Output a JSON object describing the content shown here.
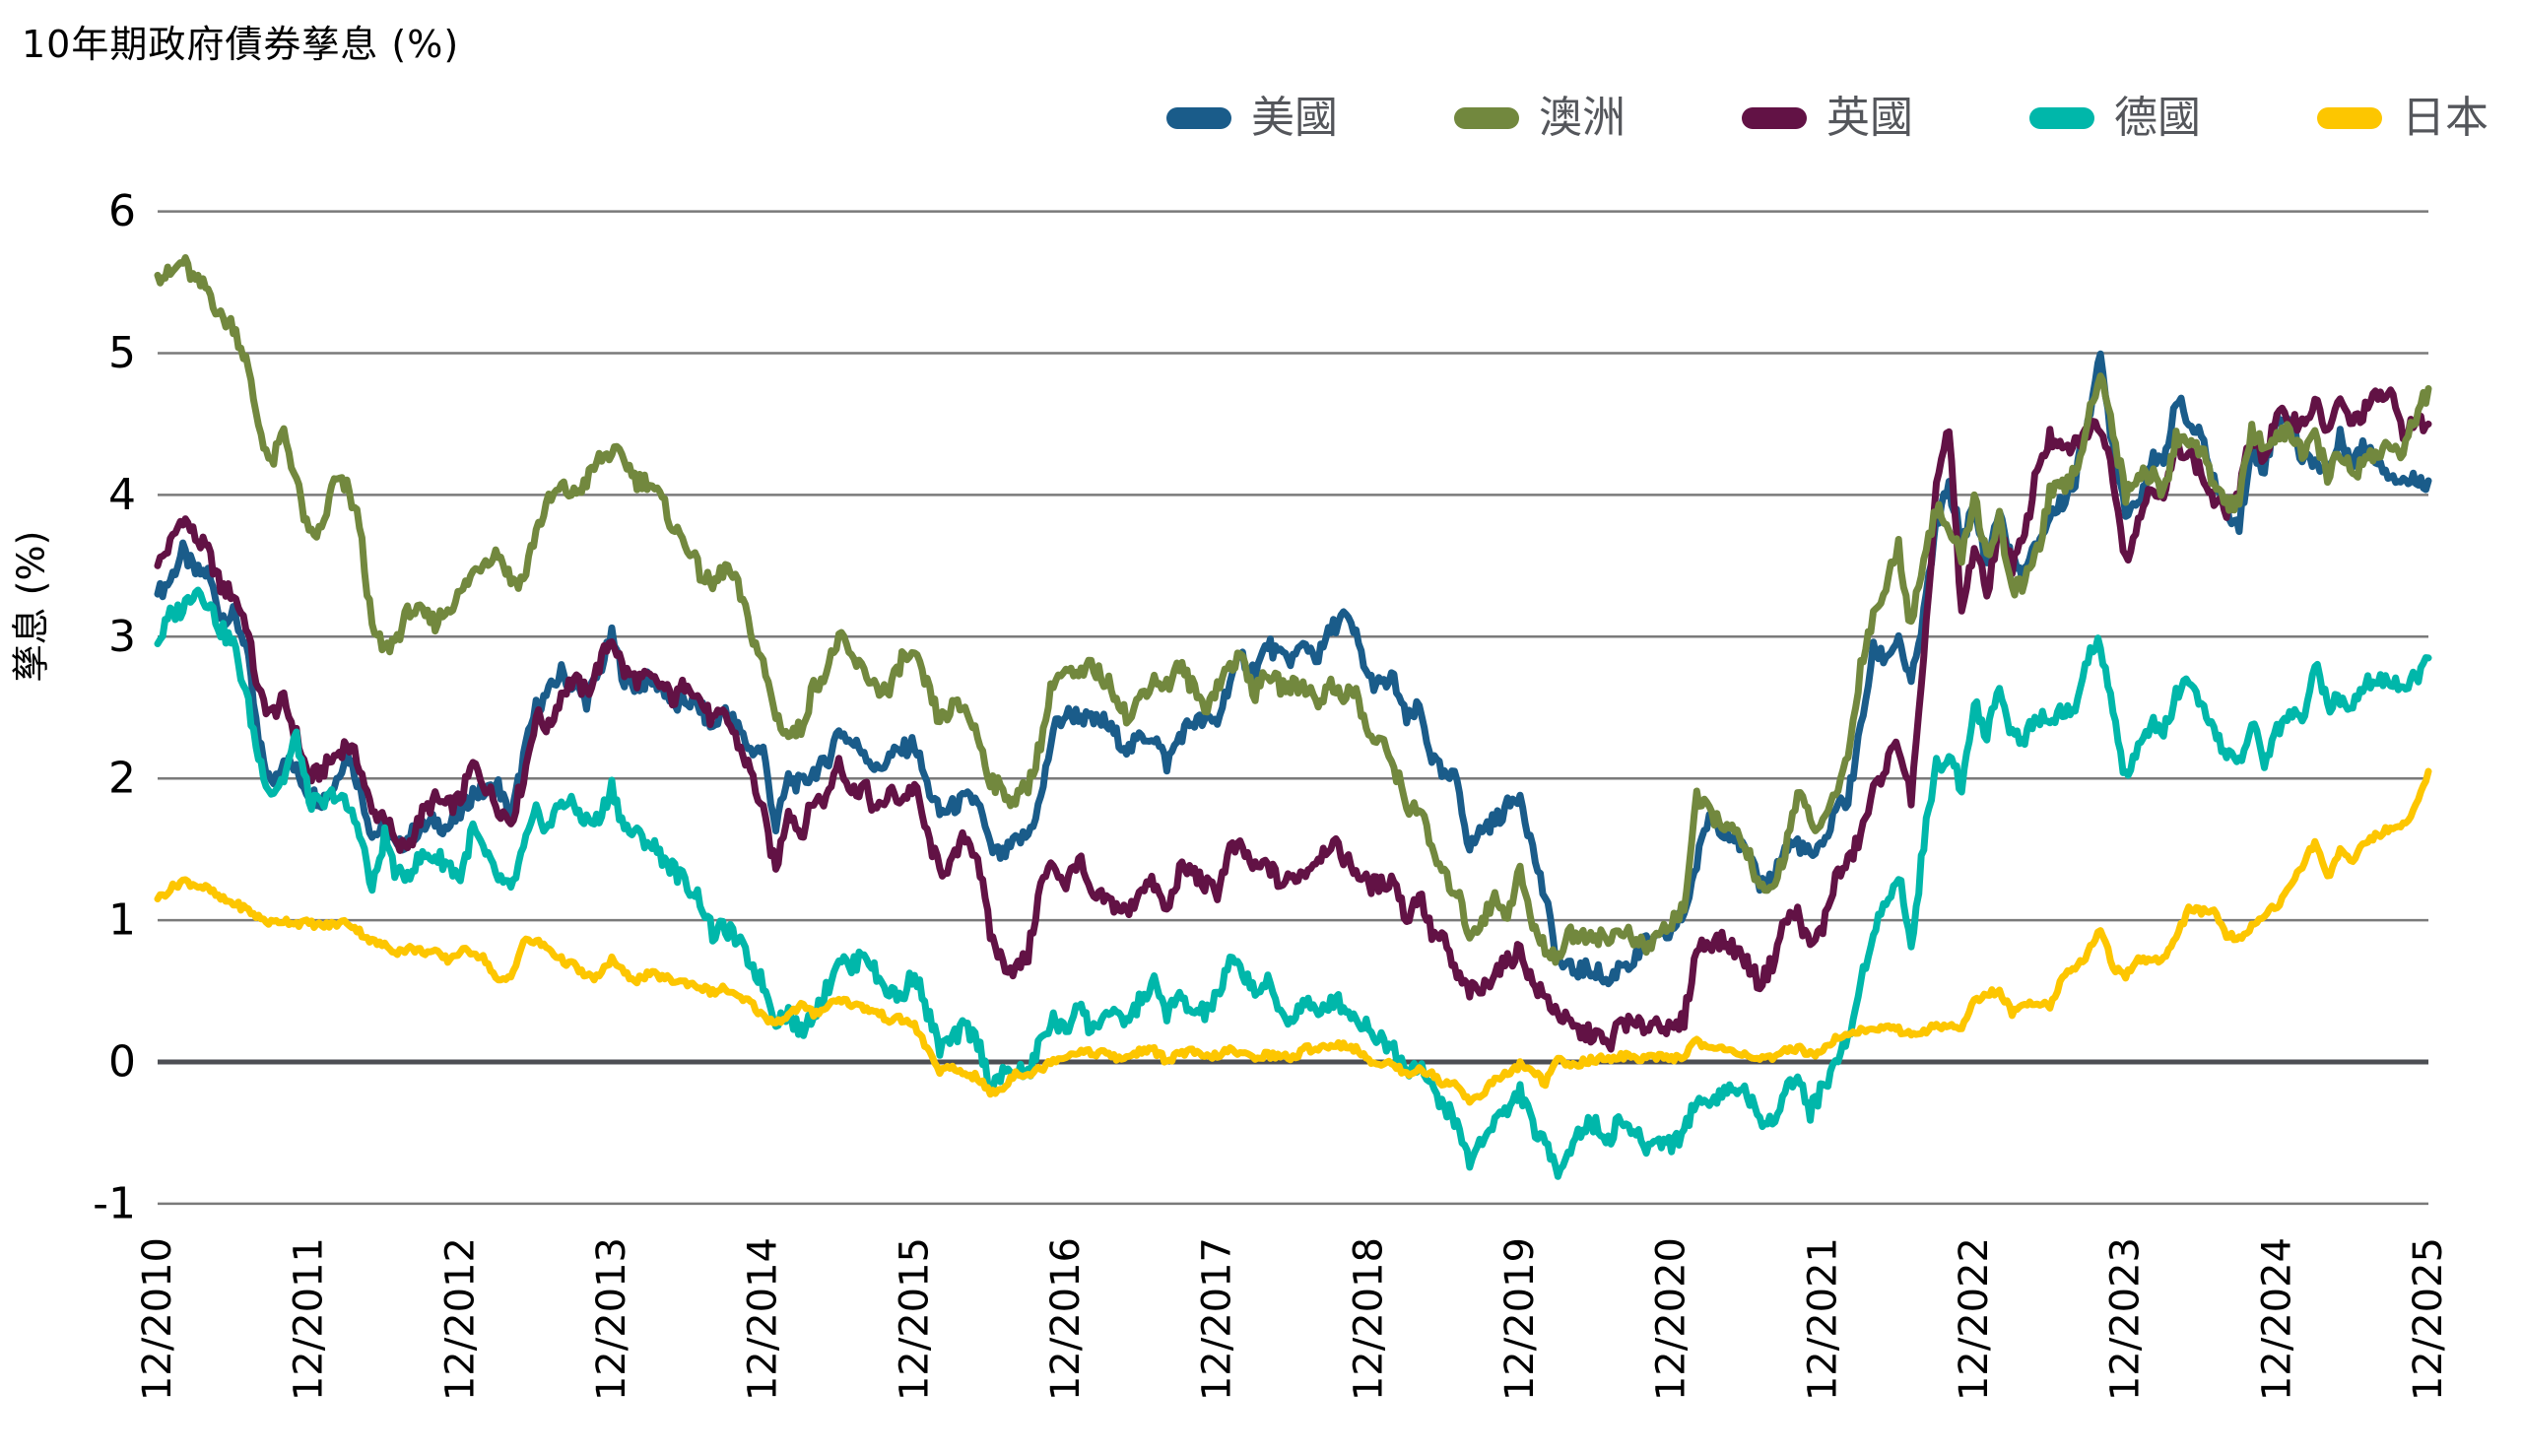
{
  "title": "10年期政府債券孳息 (%)",
  "colors": {
    "us": "#1a5c8a",
    "australia": "#72883e",
    "uk": "#621245",
    "germany": "#00b7aa",
    "japan": "#fdc600",
    "gridline": "#7a7a7a",
    "zero_line": "#4d4f54",
    "legend_text": "#54565b"
  },
  "chart_data": {
    "type": "line",
    "title": "10年期政府債券孳息 (%)",
    "xlabel": "",
    "ylabel": "孳息 (%)",
    "ylim": [
      -1,
      6
    ],
    "yticks": [
      6,
      5,
      4,
      3,
      2,
      1,
      0,
      -1
    ],
    "grid": "horizontal",
    "legend_position": "top-right",
    "x_tick_labels": [
      "12/2010",
      "12/2011",
      "12/2012",
      "12/2013",
      "12/2014",
      "12/2015",
      "12/2016",
      "12/2017",
      "12/2018",
      "12/2019",
      "12/2020",
      "12/2021",
      "12/2022",
      "12/2023",
      "12/2024",
      "12/2025"
    ],
    "x_frequency": "monthly from 12/2010 to 12/2025",
    "series": [
      {
        "name": "美國",
        "color": "#1a5c8a",
        "values": [
          3.3,
          3.4,
          3.6,
          3.45,
          3.45,
          3.15,
          3.15,
          2.95,
          2.25,
          1.95,
          2.15,
          2.05,
          1.9,
          1.85,
          1.95,
          2.2,
          1.95,
          1.6,
          1.65,
          1.5,
          1.6,
          1.65,
          1.7,
          1.65,
          1.75,
          1.9,
          1.9,
          1.95,
          1.7,
          2.15,
          2.5,
          2.6,
          2.75,
          2.65,
          2.55,
          2.75,
          3.0,
          2.7,
          2.65,
          2.7,
          2.65,
          2.5,
          2.55,
          2.5,
          2.35,
          2.5,
          2.35,
          2.2,
          2.2,
          1.65,
          2.0,
          1.95,
          2.05,
          2.1,
          2.35,
          2.25,
          2.2,
          2.05,
          2.15,
          2.2,
          2.25,
          1.95,
          1.75,
          1.8,
          1.85,
          1.85,
          1.5,
          1.45,
          1.55,
          1.6,
          1.85,
          2.35,
          2.45,
          2.45,
          2.4,
          2.4,
          2.3,
          2.2,
          2.3,
          2.3,
          2.1,
          2.3,
          2.4,
          2.4,
          2.4,
          2.7,
          2.85,
          2.75,
          2.95,
          2.85,
          2.85,
          2.95,
          2.85,
          3.05,
          3.15,
          3.0,
          2.7,
          2.65,
          2.7,
          2.4,
          2.5,
          2.15,
          2.0,
          2.0,
          1.5,
          1.65,
          1.7,
          1.8,
          1.9,
          1.5,
          1.15,
          0.7,
          0.65,
          0.65,
          0.65,
          0.55,
          0.7,
          0.7,
          0.85,
          0.85,
          0.92,
          1.05,
          1.4,
          1.75,
          1.65,
          1.6,
          1.45,
          1.25,
          1.3,
          1.5,
          1.55,
          1.45,
          1.5,
          1.8,
          1.85,
          2.35,
          2.9,
          2.85,
          3.0,
          2.65,
          3.15,
          3.8,
          4.05,
          3.7,
          3.9,
          3.5,
          3.9,
          3.5,
          3.45,
          3.65,
          3.85,
          3.95,
          4.1,
          4.55,
          4.95,
          4.35,
          3.9,
          3.95,
          4.25,
          4.2,
          4.7,
          4.5,
          4.4,
          4.1,
          3.9,
          3.8,
          4.3,
          4.2,
          4.55,
          4.55,
          4.25,
          4.25,
          4.15,
          4.4,
          4.25,
          4.35,
          4.25,
          4.15,
          4.1,
          4.1,
          4.1
        ]
      },
      {
        "name": "英國",
        "color": "#621245",
        "values": [
          3.5,
          3.65,
          3.85,
          3.7,
          3.6,
          3.35,
          3.3,
          3.1,
          2.6,
          2.45,
          2.55,
          2.3,
          2.0,
          2.05,
          2.15,
          2.25,
          2.1,
          1.75,
          1.75,
          1.5,
          1.55,
          1.75,
          1.85,
          1.8,
          1.85,
          2.1,
          1.95,
          1.8,
          1.7,
          2.0,
          2.45,
          2.35,
          2.6,
          2.7,
          2.6,
          2.8,
          3.0,
          2.75,
          2.7,
          2.7,
          2.65,
          2.55,
          2.7,
          2.55,
          2.4,
          2.45,
          2.25,
          2.05,
          1.75,
          1.35,
          1.8,
          1.6,
          1.85,
          1.85,
          2.15,
          1.9,
          1.95,
          1.75,
          1.9,
          1.85,
          1.95,
          1.6,
          1.35,
          1.4,
          1.6,
          1.45,
          0.9,
          0.7,
          0.65,
          0.75,
          1.25,
          1.4,
          1.25,
          1.45,
          1.15,
          1.15,
          1.1,
          1.05,
          1.25,
          1.25,
          1.05,
          1.35,
          1.35,
          1.25,
          1.2,
          1.5,
          1.5,
          1.35,
          1.4,
          1.25,
          1.3,
          1.35,
          1.45,
          1.55,
          1.45,
          1.35,
          1.25,
          1.25,
          1.3,
          1.0,
          1.2,
          0.9,
          0.85,
          0.6,
          0.5,
          0.5,
          0.65,
          0.7,
          0.8,
          0.55,
          0.45,
          0.35,
          0.25,
          0.2,
          0.2,
          0.1,
          0.3,
          0.25,
          0.25,
          0.3,
          0.2,
          0.3,
          0.8,
          0.85,
          0.85,
          0.8,
          0.7,
          0.55,
          0.7,
          1.0,
          1.05,
          0.8,
          0.95,
          1.3,
          1.4,
          1.6,
          1.9,
          2.1,
          2.25,
          1.85,
          2.8,
          4.1,
          4.45,
          3.15,
          3.65,
          3.3,
          3.8,
          3.5,
          3.7,
          4.2,
          4.4,
          4.3,
          4.35,
          4.45,
          4.5,
          4.15,
          3.55,
          3.8,
          4.1,
          3.95,
          4.35,
          4.3,
          4.15,
          3.95,
          3.9,
          4.0,
          4.45,
          4.25,
          4.55,
          4.55,
          4.5,
          4.65,
          4.45,
          4.65,
          4.5,
          4.6,
          4.7,
          4.7,
          4.45,
          4.5,
          4.5
        ]
      },
      {
        "name": "澳洲",
        "color": "#72883e",
        "values": [
          5.55,
          5.55,
          5.65,
          5.5,
          5.45,
          5.25,
          5.2,
          4.95,
          4.5,
          4.2,
          4.45,
          4.1,
          3.7,
          3.75,
          4.1,
          4.05,
          3.8,
          3.05,
          2.9,
          3.0,
          3.2,
          3.15,
          3.1,
          3.2,
          3.3,
          3.45,
          3.55,
          3.6,
          3.4,
          3.4,
          3.75,
          3.95,
          4.05,
          4.0,
          4.1,
          4.25,
          4.3,
          4.25,
          4.1,
          4.1,
          3.95,
          3.75,
          3.65,
          3.45,
          3.35,
          3.5,
          3.35,
          3.05,
          2.8,
          2.45,
          2.3,
          2.35,
          2.65,
          2.75,
          3.0,
          2.85,
          2.75,
          2.65,
          2.6,
          2.85,
          2.85,
          2.65,
          2.4,
          2.5,
          2.5,
          2.3,
          2.0,
          1.9,
          1.85,
          1.95,
          2.25,
          2.7,
          2.75,
          2.7,
          2.8,
          2.7,
          2.6,
          2.4,
          2.6,
          2.7,
          2.65,
          2.8,
          2.65,
          2.5,
          2.65,
          2.8,
          2.85,
          2.6,
          2.75,
          2.65,
          2.65,
          2.65,
          2.55,
          2.65,
          2.6,
          2.6,
          2.3,
          2.25,
          2.1,
          1.8,
          1.8,
          1.5,
          1.3,
          1.2,
          0.9,
          1.0,
          1.15,
          1.05,
          1.35,
          0.95,
          0.8,
          0.75,
          0.9,
          0.9,
          0.9,
          0.85,
          0.95,
          0.85,
          0.8,
          0.9,
          0.98,
          1.1,
          1.85,
          1.75,
          1.7,
          1.6,
          1.5,
          1.2,
          1.2,
          1.5,
          1.9,
          1.7,
          1.65,
          1.9,
          2.15,
          2.8,
          3.15,
          3.35,
          3.65,
          3.05,
          3.6,
          3.9,
          3.75,
          3.55,
          4.0,
          3.55,
          3.85,
          3.3,
          3.4,
          3.6,
          4.0,
          4.05,
          4.15,
          4.5,
          4.9,
          4.45,
          4.0,
          4.15,
          4.15,
          4.0,
          4.4,
          4.4,
          4.3,
          4.1,
          3.95,
          3.95,
          4.45,
          4.35,
          4.4,
          4.45,
          4.3,
          4.4,
          4.15,
          4.3,
          4.15,
          4.25,
          4.3,
          4.35,
          4.3,
          4.55,
          4.75
        ]
      },
      {
        "name": "德國",
        "color": "#00b7aa",
        "values": [
          2.95,
          3.15,
          3.2,
          3.35,
          3.25,
          3.05,
          2.95,
          2.6,
          2.15,
          1.9,
          2.0,
          2.3,
          1.85,
          1.8,
          1.9,
          1.8,
          1.65,
          1.2,
          1.6,
          1.3,
          1.35,
          1.45,
          1.45,
          1.4,
          1.3,
          1.65,
          1.45,
          1.3,
          1.2,
          1.5,
          1.75,
          1.65,
          1.85,
          1.8,
          1.7,
          1.7,
          1.95,
          1.65,
          1.6,
          1.55,
          1.45,
          1.35,
          1.25,
          1.15,
          0.9,
          0.95,
          0.85,
          0.7,
          0.55,
          0.3,
          0.35,
          0.2,
          0.35,
          0.5,
          0.75,
          0.65,
          0.8,
          0.6,
          0.5,
          0.45,
          0.65,
          0.35,
          0.1,
          0.15,
          0.25,
          0.15,
          -0.15,
          -0.1,
          -0.05,
          -0.1,
          0.15,
          0.3,
          0.2,
          0.45,
          0.2,
          0.35,
          0.3,
          0.3,
          0.45,
          0.55,
          0.35,
          0.45,
          0.35,
          0.35,
          0.45,
          0.7,
          0.65,
          0.5,
          0.55,
          0.35,
          0.3,
          0.45,
          0.3,
          0.45,
          0.4,
          0.3,
          0.25,
          0.15,
          0.1,
          -0.05,
          0.0,
          -0.2,
          -0.3,
          -0.45,
          -0.7,
          -0.55,
          -0.4,
          -0.35,
          -0.2,
          -0.45,
          -0.6,
          -0.75,
          -0.6,
          -0.45,
          -0.45,
          -0.55,
          -0.4,
          -0.5,
          -0.6,
          -0.55,
          -0.57,
          -0.5,
          -0.25,
          -0.3,
          -0.2,
          -0.2,
          -0.2,
          -0.45,
          -0.4,
          -0.2,
          -0.1,
          -0.35,
          -0.18,
          0.0,
          0.15,
          0.55,
          0.95,
          1.1,
          1.35,
          0.8,
          1.55,
          2.1,
          2.15,
          1.95,
          2.55,
          2.3,
          2.65,
          2.3,
          2.3,
          2.45,
          2.4,
          2.5,
          2.45,
          2.85,
          2.95,
          2.45,
          2.0,
          2.2,
          2.4,
          2.3,
          2.6,
          2.65,
          2.5,
          2.3,
          2.2,
          2.1,
          2.4,
          2.1,
          2.35,
          2.45,
          2.4,
          2.85,
          2.5,
          2.55,
          2.55,
          2.7,
          2.7,
          2.7,
          2.65,
          2.7,
          2.85
        ]
      },
      {
        "name": "日本",
        "color": "#fdc600",
        "values": [
          1.15,
          1.22,
          1.28,
          1.25,
          1.22,
          1.15,
          1.12,
          1.08,
          1.02,
          0.98,
          1.0,
          0.98,
          0.98,
          0.96,
          0.97,
          0.99,
          0.92,
          0.85,
          0.82,
          0.78,
          0.8,
          0.78,
          0.77,
          0.72,
          0.78,
          0.78,
          0.72,
          0.56,
          0.6,
          0.85,
          0.85,
          0.8,
          0.72,
          0.68,
          0.6,
          0.6,
          0.73,
          0.62,
          0.58,
          0.62,
          0.6,
          0.57,
          0.56,
          0.53,
          0.49,
          0.52,
          0.45,
          0.42,
          0.32,
          0.28,
          0.33,
          0.4,
          0.34,
          0.39,
          0.45,
          0.41,
          0.38,
          0.35,
          0.3,
          0.3,
          0.26,
          0.09,
          -0.06,
          -0.05,
          -0.08,
          -0.11,
          -0.22,
          -0.19,
          -0.07,
          -0.09,
          -0.05,
          0.02,
          0.04,
          0.08,
          0.06,
          0.07,
          0.02,
          0.04,
          0.08,
          0.08,
          0.01,
          0.06,
          0.07,
          0.03,
          0.05,
          0.08,
          0.05,
          0.04,
          0.05,
          0.04,
          0.03,
          0.09,
          0.1,
          0.12,
          0.12,
          0.09,
          0.0,
          0.0,
          -0.02,
          -0.09,
          -0.04,
          -0.09,
          -0.16,
          -0.15,
          -0.28,
          -0.22,
          -0.13,
          -0.08,
          -0.02,
          -0.06,
          -0.15,
          0.02,
          -0.03,
          0.0,
          0.02,
          0.02,
          0.05,
          0.02,
          0.04,
          0.03,
          0.02,
          0.05,
          0.15,
          0.1,
          0.09,
          0.08,
          0.05,
          0.02,
          0.02,
          0.07,
          0.1,
          0.06,
          0.07,
          0.18,
          0.2,
          0.22,
          0.23,
          0.24,
          0.23,
          0.19,
          0.22,
          0.25,
          0.25,
          0.25,
          0.42,
          0.49,
          0.5,
          0.35,
          0.39,
          0.43,
          0.4,
          0.6,
          0.65,
          0.77,
          0.95,
          0.67,
          0.61,
          0.73,
          0.71,
          0.73,
          0.88,
          1.07,
          1.06,
          1.06,
          0.9,
          0.86,
          0.95,
          1.05,
          1.1,
          1.24,
          1.38,
          1.55,
          1.3,
          1.5,
          1.43,
          1.55,
          1.6,
          1.65,
          1.67,
          1.8,
          2.05
        ]
      }
    ]
  }
}
